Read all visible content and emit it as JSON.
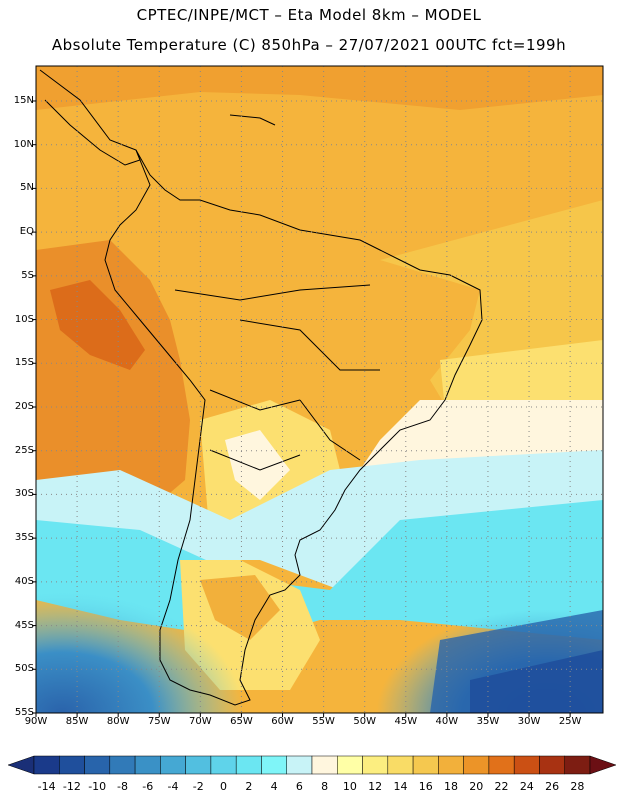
{
  "header": {
    "line1": "CPTEC/INPE/MCT  –  Eta Model 8km  –  MODEL",
    "line2": "Absolute Temperature (C) 850hPa – 27/07/2021 00UTC fct=199h"
  },
  "map": {
    "lat_labels": [
      "15N",
      "10N",
      "5N",
      "EQ",
      "5S",
      "10S",
      "15S",
      "20S",
      "25S",
      "30S",
      "35S",
      "40S",
      "45S",
      "50S",
      "55S"
    ],
    "lon_labels": [
      "90W",
      "85W",
      "80W",
      "75W",
      "70W",
      "65W",
      "60W",
      "55W",
      "50W",
      "45W",
      "40W",
      "35W",
      "30W",
      "25W"
    ],
    "lat_range": [
      -55,
      19
    ],
    "lon_range": [
      -90,
      -21
    ],
    "gridlines": "dotted, every 5 degrees"
  },
  "colorbar": {
    "labels": [
      "-14",
      "-12",
      "-10",
      "-8",
      "-6",
      "-4",
      "-2",
      "0",
      "2",
      "4",
      "6",
      "8",
      "10",
      "12",
      "14",
      "16",
      "18",
      "20",
      "22",
      "24",
      "26",
      "28"
    ],
    "colors": [
      "#1a3a8a",
      "#1f4f9c",
      "#2864ab",
      "#317ab8",
      "#3a91c6",
      "#45a8d3",
      "#52bfe0",
      "#5fd3ea",
      "#6be6f2",
      "#7ff5f8",
      "#c8f3f7",
      "#fff6de",
      "#ffffa6",
      "#fcee80",
      "#f9dc66",
      "#f5c84f",
      "#f2b03b",
      "#ec9428",
      "#e1711a",
      "#cb5014",
      "#a83212",
      "#7d1d12"
    ],
    "arrow_low_color": "#1a2f77",
    "arrow_high_color": "#6b0f14"
  }
}
